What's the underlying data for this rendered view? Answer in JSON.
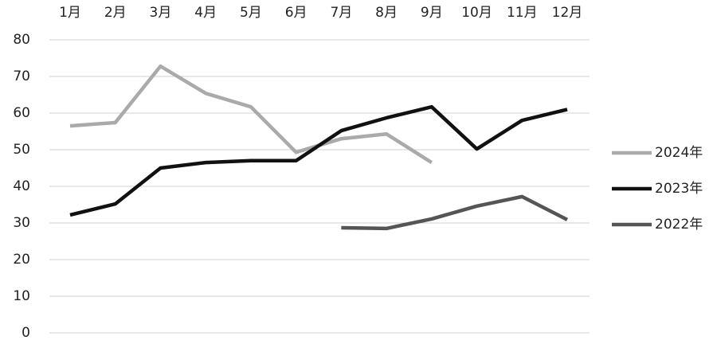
{
  "chart_data": {
    "type": "line",
    "categories": [
      "1月",
      "2月",
      "3月",
      "4月",
      "5月",
      "6月",
      "7月",
      "8月",
      "9月",
      "10月",
      "11月",
      "12月"
    ],
    "series": [
      {
        "name": "2024年",
        "color": "#aaaaaa",
        "values": [
          56.5,
          57.4,
          72.8,
          65.4,
          61.7,
          49.3,
          53,
          54.3,
          46.5,
          null,
          null,
          null
        ]
      },
      {
        "name": "2023年",
        "color": "#111111",
        "values": [
          32.2,
          35.2,
          45,
          46.5,
          47,
          47,
          55.2,
          58.7,
          61.7,
          50.2,
          58,
          61
        ]
      },
      {
        "name": "2022年",
        "color": "#555555",
        "values": [
          null,
          null,
          null,
          null,
          null,
          null,
          28.7,
          28.5,
          31.1,
          34.6,
          37.2,
          30.9
        ]
      }
    ],
    "ylim": [
      0,
      80
    ],
    "yticks": [
      0,
      10,
      20,
      30,
      40,
      50,
      60,
      70,
      80
    ],
    "grid": true,
    "legend": "right"
  }
}
